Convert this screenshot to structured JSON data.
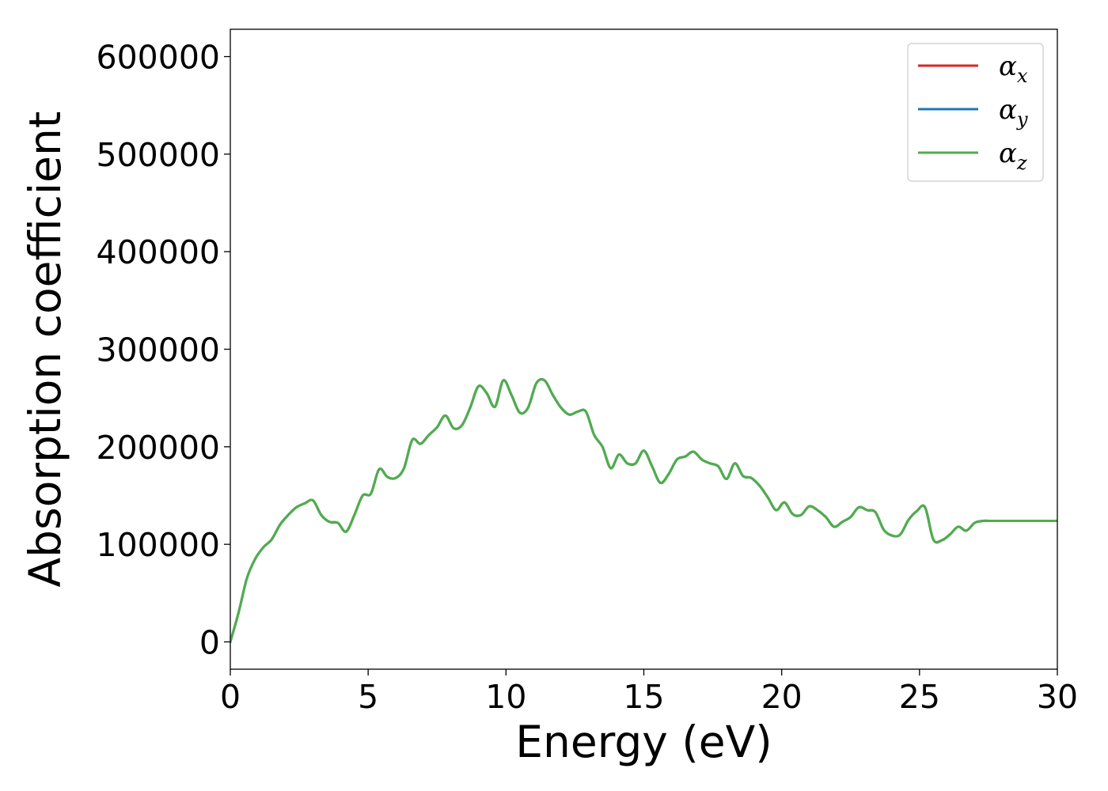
{
  "chart_data": {
    "type": "line",
    "title": "",
    "xlabel": "Energy (eV)",
    "ylabel": "Absorption coefficient",
    "xlim": [
      0,
      30
    ],
    "ylim": [
      -28000,
      628000
    ],
    "x_ticks": [
      0,
      5,
      10,
      15,
      20,
      25,
      30
    ],
    "y_ticks": [
      0,
      100000,
      200000,
      300000,
      400000,
      500000,
      600000
    ],
    "grid": false,
    "legend_position": "top-right",
    "series": [
      {
        "name": "α_x",
        "legend_symbol": "α",
        "legend_subscript": "x",
        "color": "#d62728",
        "x": [
          0,
          0.3,
          0.6,
          0.9,
          1.2,
          1.5,
          1.8,
          2.1,
          2.4,
          2.7,
          3.0,
          3.3,
          3.6,
          3.9,
          4.2,
          4.5,
          4.8,
          5.1,
          5.4,
          5.7,
          6.0,
          6.3,
          6.6,
          6.9,
          7.2,
          7.5,
          7.8,
          8.1,
          8.4,
          8.7,
          9.0,
          9.3,
          9.6,
          9.9,
          10.2,
          10.5,
          10.8,
          11.1,
          11.4,
          11.7,
          12.0,
          12.3,
          12.6,
          12.9,
          13.2,
          13.5,
          13.8,
          14.1,
          14.4,
          14.7,
          15.0,
          15.3,
          15.6,
          15.9,
          16.2,
          16.5,
          16.8,
          17.1,
          17.4,
          17.7,
          18.0,
          18.3,
          18.6,
          18.9,
          19.2,
          19.5,
          19.8,
          20.1,
          20.4,
          20.7,
          21.0,
          21.3,
          21.6,
          21.9,
          22.2,
          22.5,
          22.8,
          23.1,
          23.4,
          23.7,
          24.0,
          24.3,
          24.6,
          24.9,
          25.2,
          25.5,
          25.8,
          26.1,
          26.4,
          26.7,
          27.0,
          27.3,
          27.6,
          27.9,
          28.2,
          28.5,
          28.8,
          29.1,
          29.4,
          29.7,
          30.0
        ],
        "values": [
          0,
          30000,
          65000,
          85000,
          97000,
          105000,
          120000,
          130000,
          138000,
          142000,
          145000,
          130000,
          123000,
          122000,
          113000,
          130000,
          150000,
          152000,
          177000,
          169000,
          168000,
          178000,
          207000,
          203000,
          212000,
          220000,
          232000,
          219000,
          222000,
          240000,
          262000,
          255000,
          241000,
          268000,
          253000,
          235000,
          240000,
          265000,
          268000,
          253000,
          240000,
          233000,
          236000,
          236000,
          212000,
          200000,
          178000,
          192000,
          183000,
          183000,
          196000,
          180000,
          163000,
          172000,
          187000,
          190000,
          195000,
          187000,
          183000,
          180000,
          167000,
          183000,
          170000,
          168000,
          160000,
          148000,
          135000,
          143000,
          131000,
          130000,
          139000,
          135000,
          128000,
          118000,
          123000,
          128000,
          138000,
          135000,
          133000,
          115000,
          109000,
          110000,
          125000,
          134000,
          138000,
          105000,
          104000,
          110000,
          118000,
          114000,
          122000,
          124000,
          124000,
          124000,
          124000,
          124000,
          124000,
          124000,
          124000,
          124000,
          124000
        ]
      },
      {
        "name": "α_y",
        "legend_symbol": "α",
        "legend_subscript": "y",
        "color": "#1f77b4",
        "same_as": "α_x"
      },
      {
        "name": "α_z",
        "legend_symbol": "α",
        "legend_subscript": "z",
        "color": "#4daf4a",
        "same_as": "α_x"
      }
    ]
  }
}
